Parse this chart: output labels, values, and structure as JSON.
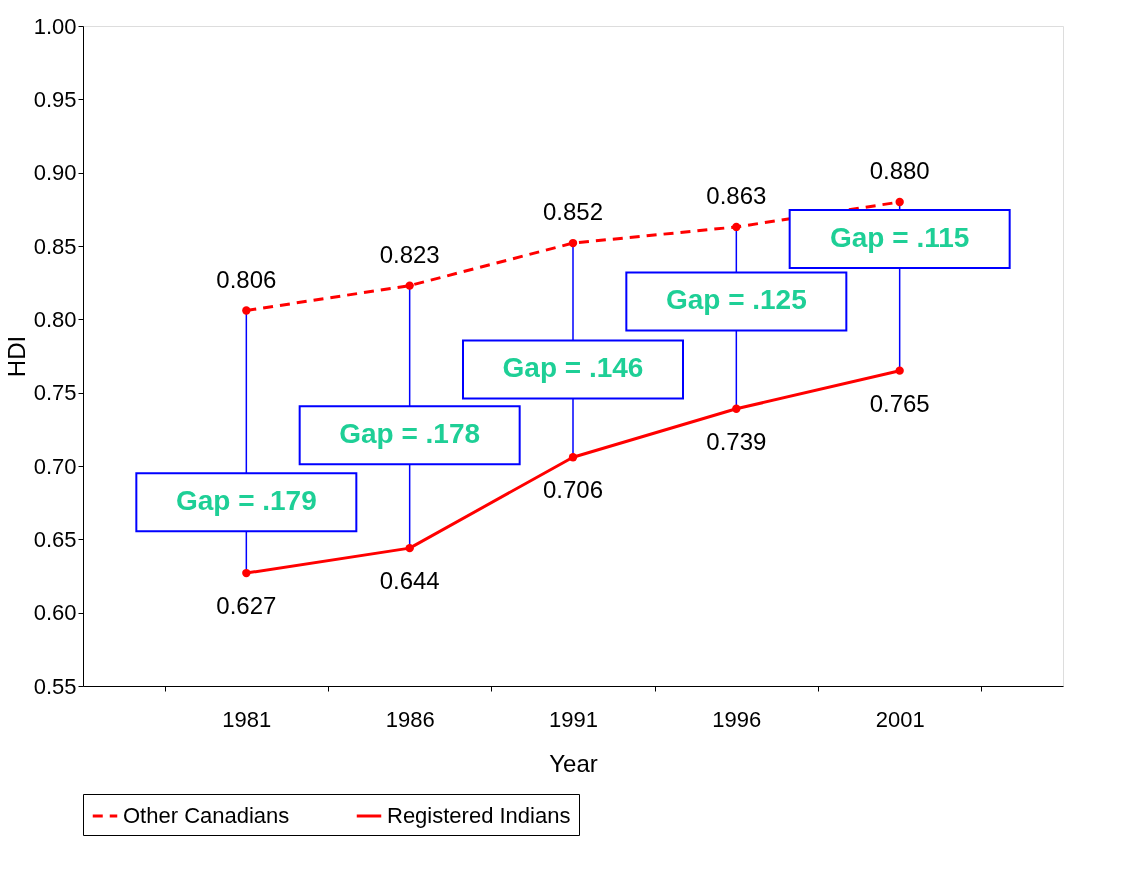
{
  "chart_data": {
    "type": "line",
    "xlabel": "Year",
    "ylabel": "HDI",
    "categories": [
      "1981",
      "1986",
      "1991",
      "1996",
      "2001"
    ],
    "series": [
      {
        "name": "Other Canadians",
        "color": "#ff0000",
        "line_style": "dashed",
        "marker": "circle",
        "values": [
          0.806,
          0.823,
          0.852,
          0.863,
          0.88
        ],
        "value_labels": [
          "0.806",
          "0.823",
          "0.852",
          "0.863",
          "0.880"
        ]
      },
      {
        "name": "Registered Indians",
        "color": "#ff0000",
        "line_style": "solid",
        "marker": "circle",
        "values": [
          0.627,
          0.644,
          0.706,
          0.739,
          0.765
        ],
        "value_labels": [
          "0.627",
          "0.644",
          "0.706",
          "0.739",
          "0.765"
        ]
      }
    ],
    "ylim": [
      0.55,
      1.0
    ],
    "yticks": [
      0.55,
      {
        "value": 0.6,
        "label": "0.60"
      },
      0.65,
      {
        "value": 0.7,
        "label": "0.70"
      },
      0.75,
      {
        "value": 0.8,
        "label": "0.80"
      },
      0.85,
      {
        "value": 0.9,
        "label": "0.90"
      },
      0.95,
      {
        "value": 1.0,
        "label": "1.00"
      }
    ],
    "grid": false,
    "legend": "bottom",
    "annotations": [
      "Gap = .179",
      "Gap = .178",
      "Gap = .146",
      "Gap = .125",
      {
        "text": "Gap = .115",
        "x": "2001"
      }
    ]
  }
}
